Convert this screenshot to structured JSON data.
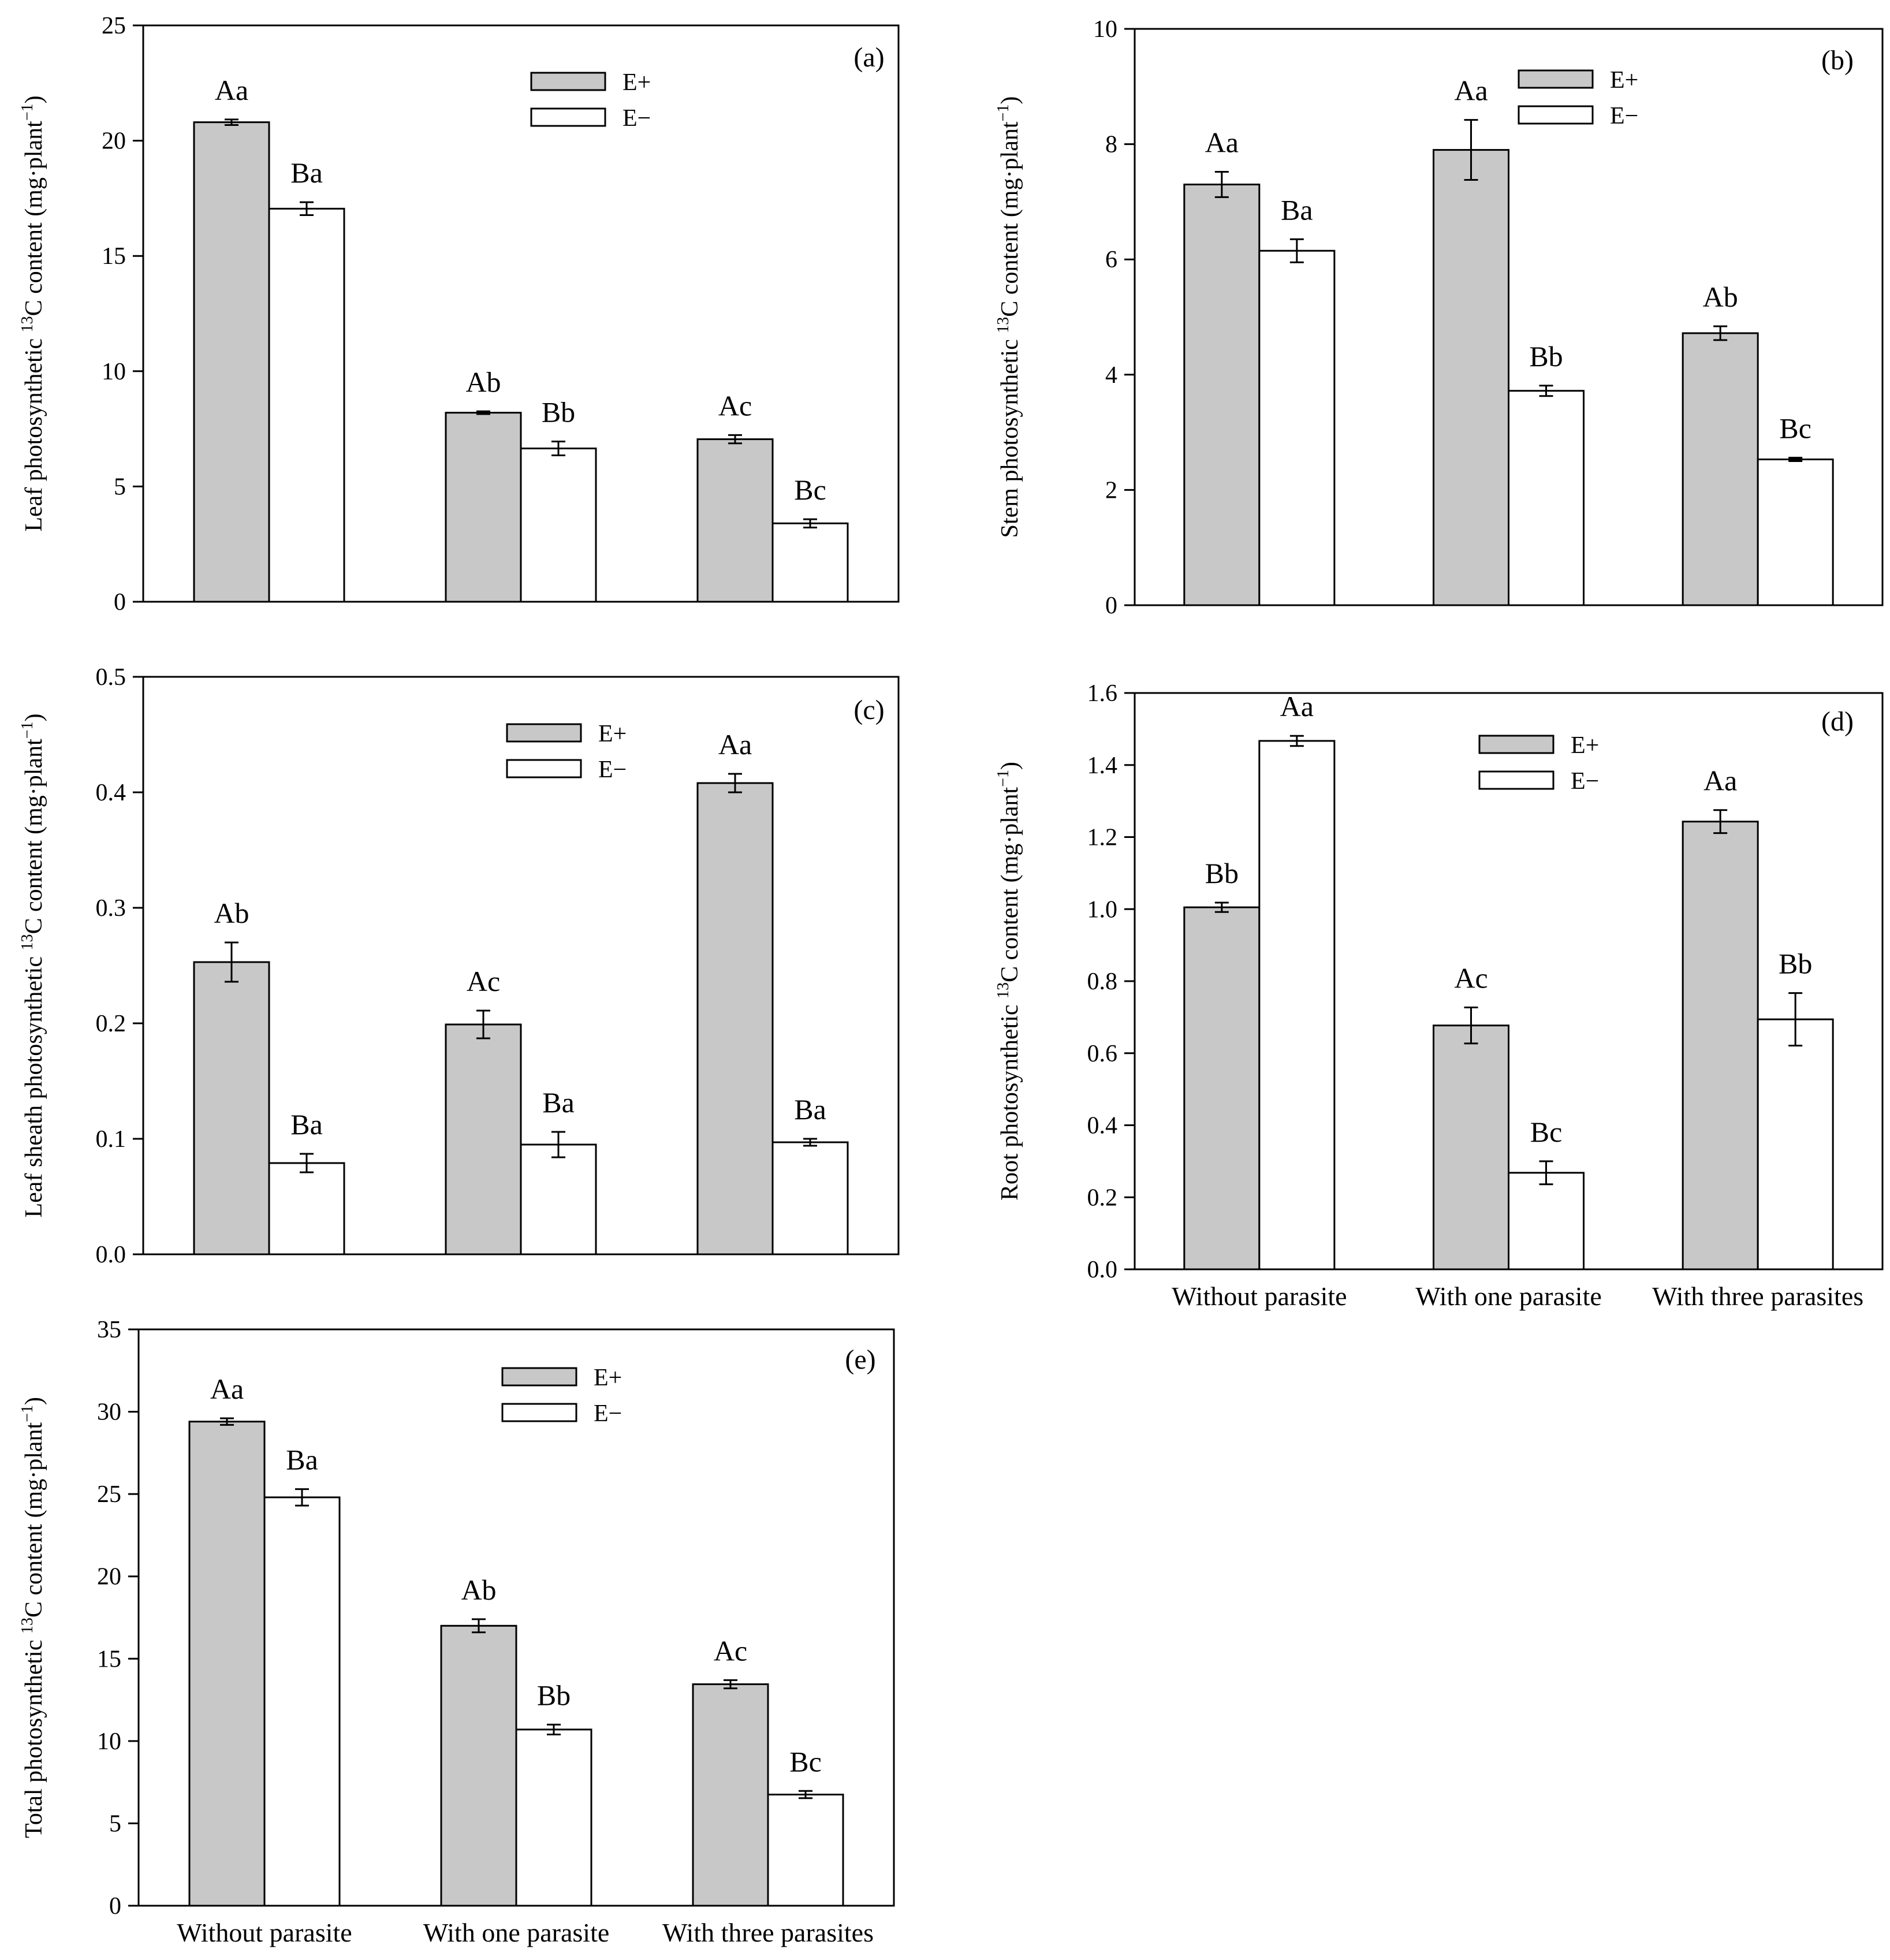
{
  "colors": {
    "e_plus": "#c8c8c8",
    "e_minus": "#ffffff",
    "stroke": "#000000"
  },
  "legend": {
    "e_plus": "E+",
    "e_minus": "E−"
  },
  "chart_data": [
    {
      "id": "a",
      "type": "bar",
      "panel_label": "(a)",
      "ylabel_main": "Leaf photosynthetic ",
      "ylabel_sup": "13",
      "ylabel_tail": "C content (mg·plant",
      "ylabel_sup2": "−1",
      "ylabel_end": ")",
      "ylim": [
        0,
        25
      ],
      "yticks": [
        "0",
        "5",
        "10",
        "15",
        "20",
        "25"
      ],
      "ytick_values": [
        0,
        5,
        10,
        15,
        20,
        25
      ],
      "categories": [
        "Without parasite",
        "With one parasite",
        "With three parasites"
      ],
      "show_xlabels": false,
      "series": [
        {
          "name": "E+",
          "values": [
            20.8,
            8.2,
            7.05
          ],
          "errors": [
            0.12,
            0.06,
            0.18
          ],
          "labels": [
            "Aa",
            "Ab",
            "Ac"
          ]
        },
        {
          "name": "E−",
          "values": [
            17.05,
            6.65,
            3.4
          ],
          "errors": [
            0.28,
            0.3,
            0.18
          ],
          "labels": [
            "Ba",
            "Bb",
            "Bc"
          ]
        }
      ]
    },
    {
      "id": "b",
      "type": "bar",
      "panel_label": "(b)",
      "ylabel_main": "Stem photosynthetic ",
      "ylabel_sup": "13",
      "ylabel_tail": "C content (mg·plant",
      "ylabel_sup2": "−1",
      "ylabel_end": ")",
      "ylim": [
        0,
        10
      ],
      "yticks": [
        "0",
        "2",
        "4",
        "6",
        "8",
        "10"
      ],
      "ytick_values": [
        0,
        2,
        4,
        6,
        8,
        10
      ],
      "categories": [
        "Without parasite",
        "With one parasite",
        "With three parasites"
      ],
      "show_xlabels": false,
      "series": [
        {
          "name": "E+",
          "values": [
            7.3,
            7.9,
            4.72
          ],
          "errors": [
            0.22,
            0.52,
            0.12
          ],
          "labels": [
            "Aa",
            "Aa",
            "Ab"
          ]
        },
        {
          "name": "E−",
          "values": [
            6.15,
            3.72,
            2.53
          ],
          "errors": [
            0.2,
            0.09,
            0.03
          ],
          "labels": [
            "Ba",
            "Bb",
            "Bc"
          ]
        }
      ]
    },
    {
      "id": "c",
      "type": "bar",
      "panel_label": "(c)",
      "ylabel_main": "Leaf  sheath photosynthetic ",
      "ylabel_sup": "13",
      "ylabel_tail": "C content (mg·plant",
      "ylabel_sup2": "−1",
      "ylabel_end": ")",
      "ylim": [
        0,
        0.5
      ],
      "yticks": [
        "0.0",
        "0.1",
        "0.2",
        "0.3",
        "0.4",
        "0.5"
      ],
      "ytick_values": [
        0,
        0.1,
        0.2,
        0.3,
        0.4,
        0.5
      ],
      "categories": [
        "Without parasite",
        "With one parasite",
        "With three parasites"
      ],
      "show_xlabels": false,
      "series": [
        {
          "name": "E+",
          "values": [
            0.253,
            0.199,
            0.408
          ],
          "errors": [
            0.017,
            0.012,
            0.008
          ],
          "labels": [
            "Ab",
            "Ac",
            "Aa"
          ]
        },
        {
          "name": "E−",
          "values": [
            0.079,
            0.095,
            0.097
          ],
          "errors": [
            0.008,
            0.011,
            0.003
          ],
          "labels": [
            "Ba",
            "Ba",
            "Ba"
          ]
        }
      ]
    },
    {
      "id": "d",
      "type": "bar",
      "panel_label": "(d)",
      "ylabel_main": "Root photosynthetic ",
      "ylabel_sup": "13",
      "ylabel_tail": "C content (mg·plant",
      "ylabel_sup2": "−1",
      "ylabel_end": ")",
      "ylim": [
        0,
        1.6
      ],
      "yticks": [
        "0.0",
        "0.2",
        "0.4",
        "0.6",
        "0.8",
        "1.0",
        "1.2",
        "1.4",
        "1.6"
      ],
      "ytick_values": [
        0,
        0.2,
        0.4,
        0.6,
        0.8,
        1.0,
        1.2,
        1.4,
        1.6
      ],
      "categories": [
        "Without parasite",
        "With one parasite",
        "With three parasites"
      ],
      "show_xlabels": true,
      "series": [
        {
          "name": "E+",
          "values": [
            1.005,
            0.677,
            1.243
          ],
          "errors": [
            0.013,
            0.05,
            0.032
          ],
          "labels": [
            "Bb",
            "Ac",
            "Aa"
          ]
        },
        {
          "name": "E−",
          "values": [
            1.467,
            0.268,
            0.694
          ],
          "errors": [
            0.014,
            0.032,
            0.073
          ],
          "labels": [
            "Aa",
            "Bc",
            "Bb"
          ]
        }
      ]
    },
    {
      "id": "e",
      "type": "bar",
      "panel_label": "(e)",
      "ylabel_main": "Total photosynthetic ",
      "ylabel_sup": "13",
      "ylabel_tail": "C content (mg·plant",
      "ylabel_sup2": "−1",
      "ylabel_end": ")",
      "ylim": [
        0,
        35
      ],
      "yticks": [
        "0",
        "5",
        "10",
        "15",
        "20",
        "25",
        "30",
        "35"
      ],
      "ytick_values": [
        0,
        5,
        10,
        15,
        20,
        25,
        30,
        35
      ],
      "categories": [
        "Without parasite",
        "With one parasite",
        "With three parasites"
      ],
      "show_xlabels": true,
      "series": [
        {
          "name": "E+",
          "values": [
            29.4,
            17.0,
            13.45
          ],
          "errors": [
            0.2,
            0.4,
            0.25
          ],
          "labels": [
            "Aa",
            "Ab",
            "Ac"
          ]
        },
        {
          "name": "E−",
          "values": [
            24.8,
            10.7,
            6.75
          ],
          "errors": [
            0.5,
            0.3,
            0.22
          ],
          "labels": [
            "Ba",
            "Bb",
            "Bc"
          ]
        }
      ]
    }
  ]
}
